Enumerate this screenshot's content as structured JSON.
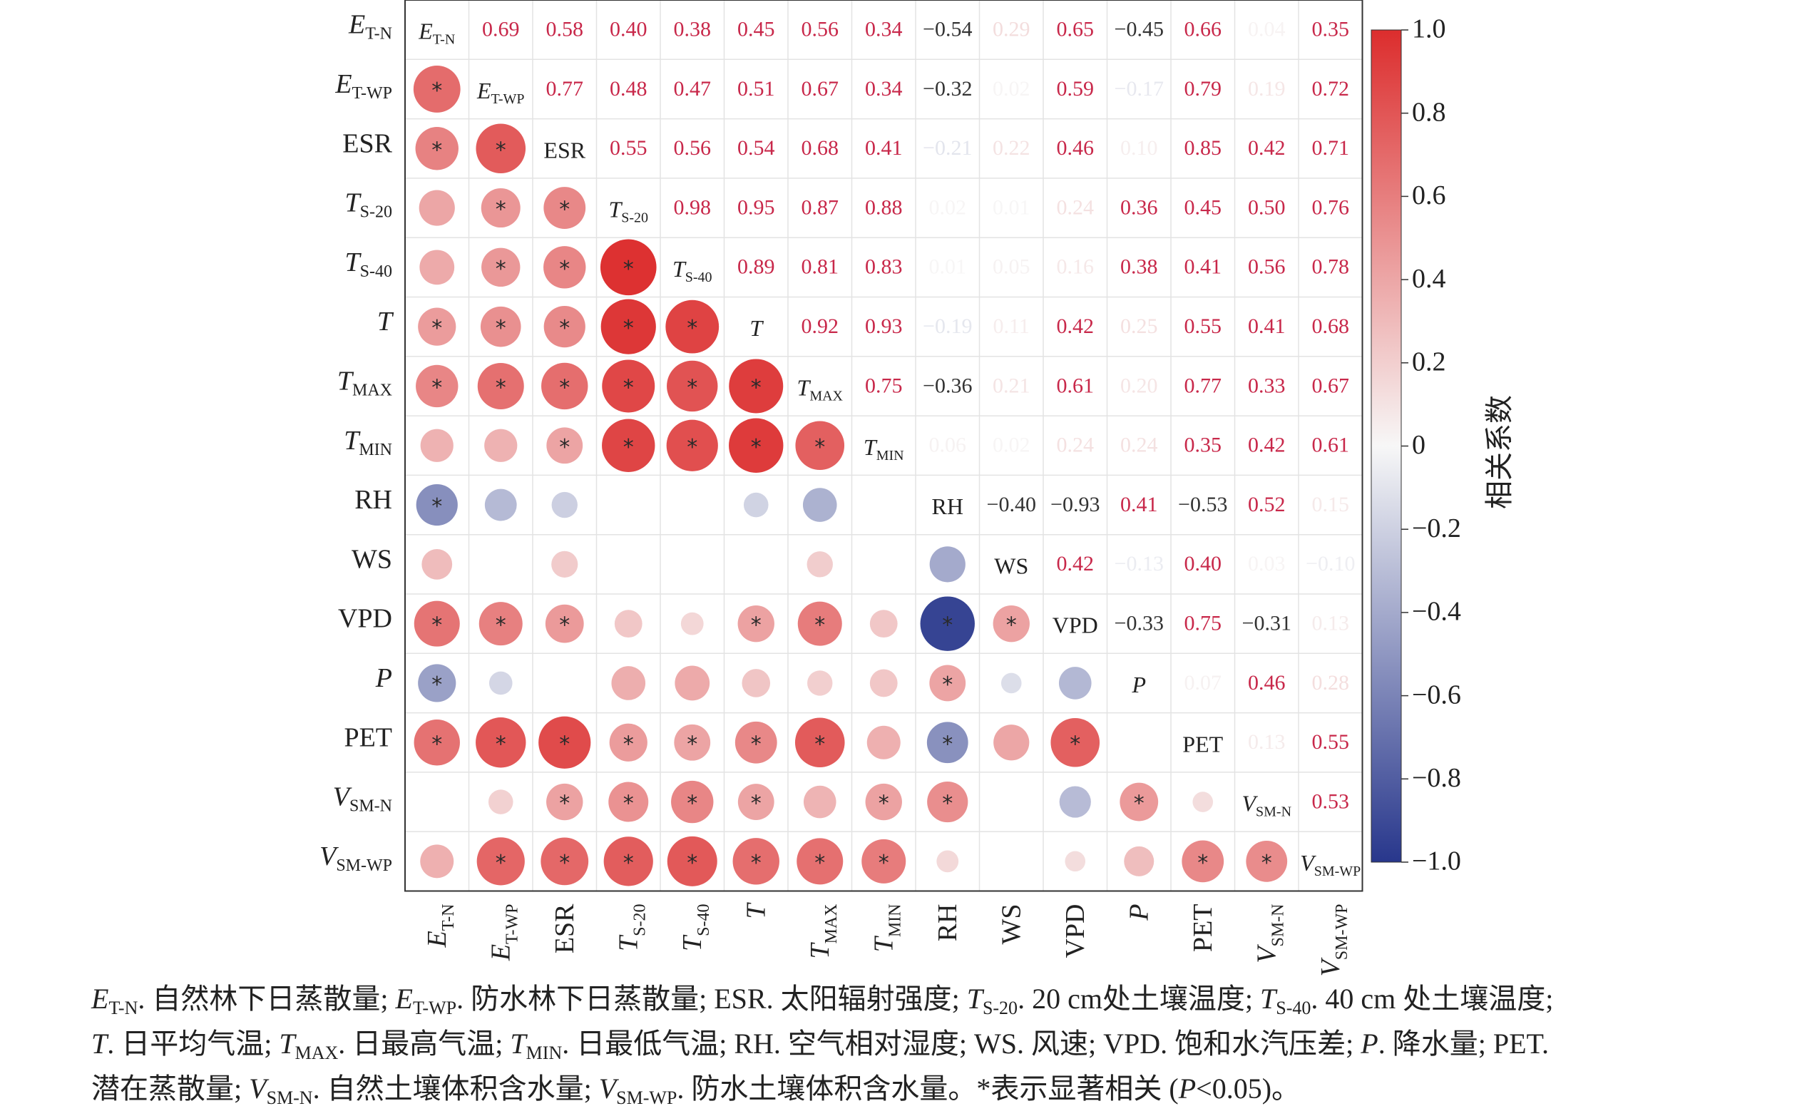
{
  "chart_data": {
    "type": "heatmap",
    "subtype": "correlation-matrix",
    "variables": [
      {
        "id": "ET-N",
        "main": "E",
        "sub": "T-N",
        "italic": true
      },
      {
        "id": "ET-WP",
        "main": "E",
        "sub": "T-WP",
        "italic": true
      },
      {
        "id": "ESR",
        "main": "ESR",
        "sub": "",
        "italic": false
      },
      {
        "id": "TS-20",
        "main": "T",
        "sub": "S-20",
        "italic": true
      },
      {
        "id": "TS-40",
        "main": "T",
        "sub": "S-40",
        "italic": true
      },
      {
        "id": "T",
        "main": "T",
        "sub": "",
        "italic": true
      },
      {
        "id": "TMAX",
        "main": "T",
        "sub": "MAX",
        "italic": true
      },
      {
        "id": "TMIN",
        "main": "T",
        "sub": "MIN",
        "italic": true
      },
      {
        "id": "RH",
        "main": "RH",
        "sub": "",
        "italic": false
      },
      {
        "id": "WS",
        "main": "WS",
        "sub": "",
        "italic": false
      },
      {
        "id": "VPD",
        "main": "VPD",
        "sub": "",
        "italic": false
      },
      {
        "id": "P",
        "main": "P",
        "sub": "",
        "italic": true
      },
      {
        "id": "PET",
        "main": "PET",
        "sub": "",
        "italic": false
      },
      {
        "id": "VSM-N",
        "main": "V",
        "sub": "SM-N",
        "italic": true
      },
      {
        "id": "VSM-WP",
        "main": "V",
        "sub": "SM-WP",
        "italic": true
      }
    ],
    "matrix": [
      [
        1,
        0.69,
        0.58,
        0.4,
        0.38,
        0.45,
        0.56,
        0.34,
        -0.54,
        0.29,
        0.65,
        -0.45,
        0.66,
        0.04,
        0.35
      ],
      [
        0.69,
        1,
        0.77,
        0.48,
        0.47,
        0.51,
        0.67,
        0.34,
        -0.32,
        0.02,
        0.59,
        -0.17,
        0.79,
        0.19,
        0.72
      ],
      [
        0.58,
        0.77,
        1,
        0.55,
        0.56,
        0.54,
        0.68,
        0.41,
        -0.21,
        0.22,
        0.46,
        0.1,
        0.85,
        0.42,
        0.71
      ],
      [
        0.4,
        0.48,
        0.55,
        1,
        0.98,
        0.95,
        0.87,
        0.88,
        0.02,
        0.01,
        0.24,
        0.36,
        0.45,
        0.5,
        0.76
      ],
      [
        0.38,
        0.47,
        0.56,
        0.98,
        1,
        0.89,
        0.81,
        0.83,
        0.01,
        0.05,
        0.16,
        0.38,
        0.41,
        0.56,
        0.78
      ],
      [
        0.45,
        0.51,
        0.54,
        0.95,
        0.89,
        1,
        0.92,
        0.93,
        -0.19,
        0.11,
        0.42,
        0.25,
        0.55,
        0.41,
        0.68
      ],
      [
        0.56,
        0.67,
        0.68,
        0.87,
        0.81,
        0.92,
        1,
        0.75,
        -0.36,
        0.21,
        0.61,
        0.2,
        0.77,
        0.33,
        0.67
      ],
      [
        0.34,
        0.34,
        0.41,
        0.88,
        0.83,
        0.93,
        0.75,
        1,
        0.06,
        0.02,
        0.24,
        0.24,
        0.35,
        0.42,
        0.61
      ],
      [
        -0.54,
        -0.32,
        -0.21,
        0.02,
        0.01,
        -0.19,
        -0.36,
        0.06,
        1,
        -0.4,
        -0.93,
        0.41,
        -0.53,
        0.52,
        0.15
      ],
      [
        0.29,
        0.02,
        0.22,
        0.01,
        0.05,
        0.11,
        0.21,
        0.02,
        -0.4,
        1,
        0.42,
        -0.13,
        0.4,
        0.03,
        -0.1
      ],
      [
        0.65,
        0.59,
        0.46,
        0.24,
        0.16,
        0.42,
        0.61,
        0.24,
        -0.93,
        0.42,
        1,
        -0.33,
        0.75,
        -0.31,
        0.13
      ],
      [
        -0.45,
        -0.17,
        0.1,
        0.36,
        0.38,
        0.25,
        0.2,
        0.24,
        0.41,
        -0.13,
        -0.33,
        1,
        0.07,
        0.46,
        0.28
      ],
      [
        0.66,
        0.79,
        0.85,
        0.45,
        0.41,
        0.55,
        0.77,
        0.35,
        -0.53,
        0.4,
        0.75,
        0.07,
        1,
        0.13,
        0.55
      ],
      [
        0.04,
        0.19,
        0.42,
        0.5,
        0.56,
        0.41,
        0.33,
        0.42,
        0.52,
        0.03,
        -0.31,
        0.46,
        0.13,
        1,
        0.53
      ],
      [
        0.35,
        0.72,
        0.71,
        0.76,
        0.78,
        0.68,
        0.67,
        0.61,
        0.15,
        -0.1,
        0.13,
        0.28,
        0.55,
        0.53,
        1
      ]
    ],
    "significant": [
      [
        0,
        1,
        1,
        0,
        1,
        1,
        1,
        0,
        1,
        0,
        1,
        1,
        1,
        0,
        0
      ],
      [
        1,
        0,
        1,
        1,
        1,
        1,
        1,
        0,
        0,
        0,
        1,
        0,
        1,
        0,
        1
      ],
      [
        1,
        1,
        0,
        1,
        1,
        1,
        1,
        1,
        0,
        0,
        1,
        0,
        1,
        1,
        1
      ],
      [
        0,
        1,
        1,
        0,
        1,
        1,
        1,
        1,
        0,
        0,
        0,
        0,
        1,
        1,
        1
      ],
      [
        0,
        1,
        1,
        1,
        0,
        1,
        1,
        1,
        0,
        0,
        0,
        0,
        1,
        1,
        1
      ],
      [
        1,
        1,
        1,
        1,
        1,
        0,
        1,
        1,
        0,
        0,
        1,
        0,
        1,
        1,
        1
      ],
      [
        1,
        1,
        1,
        1,
        1,
        1,
        0,
        1,
        0,
        0,
        1,
        0,
        1,
        0,
        1
      ],
      [
        0,
        0,
        1,
        1,
        1,
        1,
        1,
        0,
        0,
        0,
        0,
        0,
        0,
        1,
        1
      ],
      [
        1,
        0,
        0,
        0,
        0,
        0,
        0,
        0,
        0,
        0,
        1,
        1,
        1,
        1,
        0
      ],
      [
        0,
        0,
        0,
        0,
        0,
        0,
        0,
        0,
        0,
        0,
        1,
        0,
        0,
        0,
        0
      ],
      [
        1,
        1,
        1,
        0,
        0,
        1,
        1,
        0,
        1,
        1,
        0,
        0,
        1,
        0,
        0
      ],
      [
        1,
        0,
        0,
        0,
        0,
        0,
        0,
        0,
        1,
        0,
        0,
        0,
        0,
        1,
        0
      ],
      [
        1,
        1,
        1,
        1,
        1,
        1,
        1,
        0,
        1,
        0,
        1,
        0,
        0,
        0,
        1
      ],
      [
        0,
        0,
        1,
        1,
        1,
        1,
        0,
        1,
        1,
        0,
        0,
        1,
        0,
        0,
        1
      ],
      [
        0,
        1,
        1,
        1,
        1,
        1,
        1,
        1,
        0,
        0,
        0,
        0,
        1,
        1,
        0
      ]
    ],
    "lower_triangle": "circles",
    "upper_triangle": "numbers",
    "significance_marker": "*",
    "colorbar": {
      "label": "相关系数",
      "ticks": [
        "1.0",
        "0.8",
        "0.6",
        "0.4",
        "0.2",
        "0",
        "−0.2",
        "−0.4",
        "−0.6",
        "−0.8",
        "−1.0"
      ],
      "range": [
        -1,
        1
      ],
      "colors": {
        "negative": "#28378c",
        "neutral": "#f7f7f7",
        "positive": "#dc2d2d"
      }
    },
    "grid": true
  },
  "caption": {
    "line1": [
      {
        "t": "E",
        "i": true
      },
      {
        "t": "T-N",
        "s": true
      },
      {
        "t": ". 自然林下日蒸散量; "
      },
      {
        "t": "E",
        "i": true
      },
      {
        "t": "T-WP",
        "s": true
      },
      {
        "t": ". 防水林下日蒸散量; ESR. 太阳辐射强度; "
      },
      {
        "t": "T",
        "i": true
      },
      {
        "t": "S-20",
        "s": true
      },
      {
        "t": ". 20 cm处土壤温度; "
      },
      {
        "t": "T",
        "i": true
      },
      {
        "t": "S-40",
        "s": true
      },
      {
        "t": ". 40 cm 处土壤温度;"
      }
    ],
    "line2": [
      {
        "t": "T",
        "i": true
      },
      {
        "t": ". 日平均气温; "
      },
      {
        "t": "T",
        "i": true
      },
      {
        "t": "MAX",
        "s": true
      },
      {
        "t": ". 日最高气温; "
      },
      {
        "t": "T",
        "i": true
      },
      {
        "t": "MIN",
        "s": true
      },
      {
        "t": ". 日最低气温; RH. 空气相对湿度; WS. 风速; VPD. 饱和水汽压差; "
      },
      {
        "t": "P",
        "i": true
      },
      {
        "t": ". 降水量; PET."
      }
    ],
    "line3": [
      {
        "t": "潜在蒸散量; "
      },
      {
        "t": "V",
        "i": true
      },
      {
        "t": "SM-N",
        "s": true
      },
      {
        "t": ". 自然土壤体积含水量; "
      },
      {
        "t": "V",
        "i": true
      },
      {
        "t": "SM-WP",
        "s": true
      },
      {
        "t": ". 防水土壤体积含水量。*表示显著相关 ("
      },
      {
        "t": "P",
        "i": true
      },
      {
        "t": "<0.05)。"
      }
    ]
  }
}
